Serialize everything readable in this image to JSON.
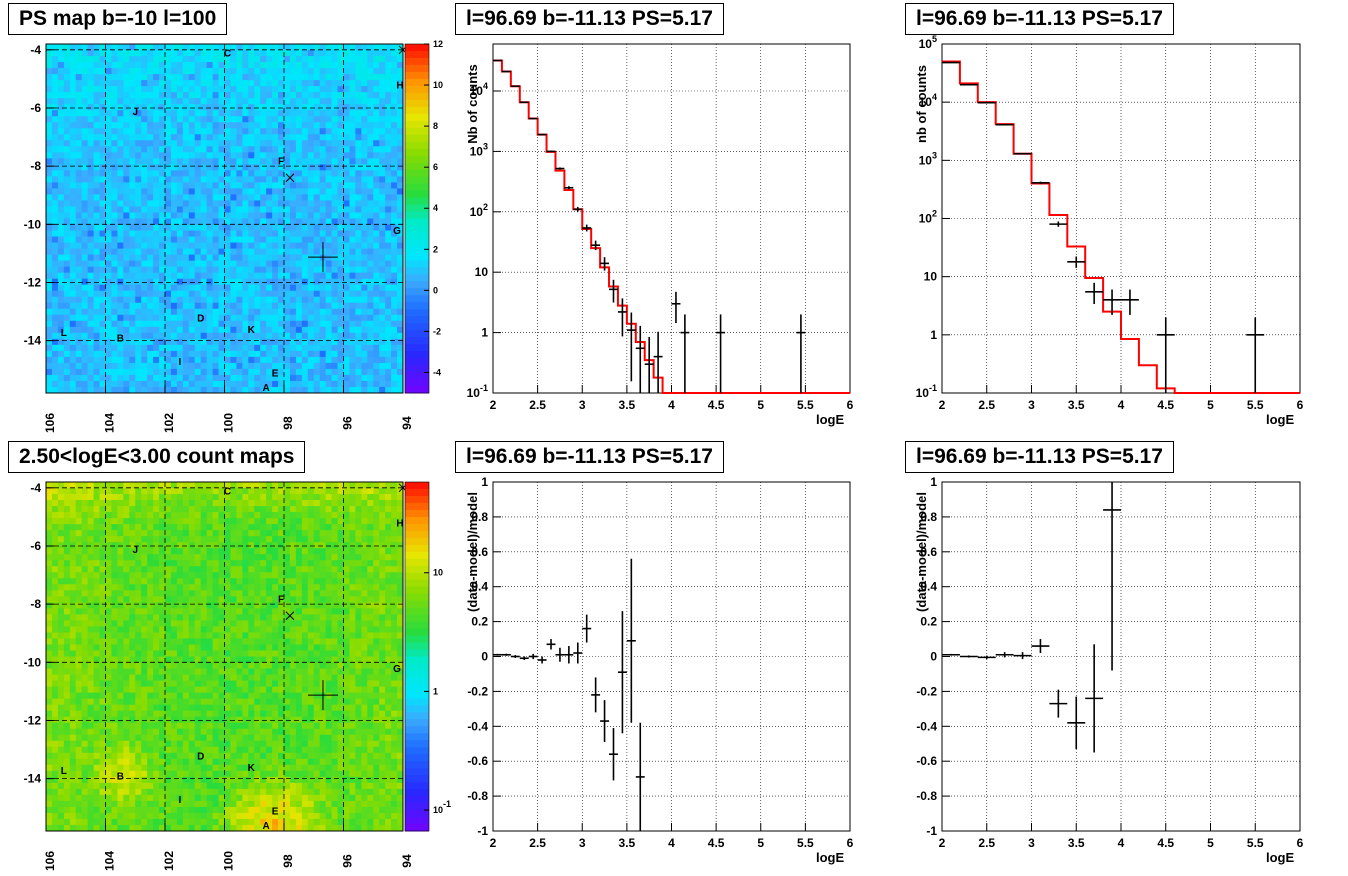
{
  "titles": {
    "ps_map": "PS map b=-10 l=100",
    "count_map": "2.50<logE<3.00 count maps",
    "spec1": "l=96.69 b=-11.13 PS=5.17",
    "spec2": "l=96.69 b=-11.13 PS=5.17",
    "res1": "l=96.69 b=-11.13 PS=5.17",
    "res2": "l=96.69 b=-11.13 PS=5.17"
  },
  "chart_data": [
    {
      "id": "ps_map",
      "type": "heatmap",
      "title": "PS map b=-10 l=100",
      "x_ticks": [
        "106",
        "104",
        "102",
        "100",
        "98",
        "96",
        "94"
      ],
      "y_ticks": [
        "-4",
        "-6",
        "-8",
        "-10",
        "-12",
        "-14"
      ],
      "xlim": [
        106,
        94
      ],
      "ylim": [
        -15.8,
        -3.8
      ],
      "colorbar_ticks": [
        "12",
        "10",
        "8",
        "6",
        "4",
        "2",
        "0",
        "-2",
        "-4"
      ],
      "colorbar_range": [
        -5,
        12
      ],
      "grid": true,
      "source_labels": [
        {
          "label": "C",
          "l": 99.9,
          "b": -4.1
        },
        {
          "label": "H",
          "l": 94.1,
          "b": -5.2
        },
        {
          "label": "J",
          "l": 103.0,
          "b": -6.1
        },
        {
          "label": "F",
          "l": 98.1,
          "b": -7.8
        },
        {
          "label": "G",
          "l": 94.2,
          "b": -10.2
        },
        {
          "label": "D",
          "l": 100.8,
          "b": -13.2
        },
        {
          "label": "K",
          "l": 99.1,
          "b": -13.6
        },
        {
          "label": "L",
          "l": 105.4,
          "b": -13.7
        },
        {
          "label": "B",
          "l": 103.5,
          "b": -13.9
        },
        {
          "label": "I",
          "l": 101.5,
          "b": -14.7
        },
        {
          "label": "E",
          "l": 98.3,
          "b": -15.1
        },
        {
          "label": "A",
          "l": 98.6,
          "b": -15.6
        }
      ],
      "x_markers": [
        {
          "l": 94.0,
          "b": -4.0
        },
        {
          "l": 97.8,
          "b": -8.4
        }
      ],
      "cross_marker": {
        "l": 96.69,
        "b": -11.13
      }
    },
    {
      "id": "count_map",
      "type": "heatmap",
      "title": "2.50<logE<3.00 count maps",
      "x_ticks": [
        "106",
        "104",
        "102",
        "100",
        "98",
        "96",
        "94"
      ],
      "y_ticks": [
        "-4",
        "-6",
        "-8",
        "-10",
        "-12",
        "-14"
      ],
      "xlim": [
        106,
        94
      ],
      "ylim": [
        -15.8,
        -3.8
      ],
      "colorbar_ticks": [
        "10",
        "1",
        "10^-1"
      ],
      "colorbar_scale": "log",
      "grid": true,
      "source_labels": [
        {
          "label": "C",
          "l": 99.9,
          "b": -4.1
        },
        {
          "label": "H",
          "l": 94.1,
          "b": -5.2
        },
        {
          "label": "J",
          "l": 103.0,
          "b": -6.1
        },
        {
          "label": "F",
          "l": 98.1,
          "b": -7.8
        },
        {
          "label": "G",
          "l": 94.2,
          "b": -10.2
        },
        {
          "label": "D",
          "l": 100.8,
          "b": -13.2
        },
        {
          "label": "K",
          "l": 99.1,
          "b": -13.6
        },
        {
          "label": "L",
          "l": 105.4,
          "b": -13.7
        },
        {
          "label": "B",
          "l": 103.5,
          "b": -13.9
        },
        {
          "label": "I",
          "l": 101.5,
          "b": -14.7
        },
        {
          "label": "E",
          "l": 98.3,
          "b": -15.1
        },
        {
          "label": "A",
          "l": 98.6,
          "b": -15.6
        }
      ],
      "x_markers": [
        {
          "l": 94.0,
          "b": -4.0
        },
        {
          "l": 97.8,
          "b": -8.4
        }
      ],
      "cross_marker": {
        "l": 96.69,
        "b": -11.13
      }
    },
    {
      "id": "spec1",
      "type": "line",
      "title": "l=96.69 b=-11.13 PS=5.17",
      "xlabel": "logE",
      "ylabel": "Nb of counts",
      "xlim": [
        2,
        6
      ],
      "ylim": [
        0.1,
        60000
      ],
      "yscale": "log",
      "x_ticks": [
        "2",
        "2.5",
        "3",
        "3.5",
        "4",
        "4.5",
        "5",
        "5.5",
        "6"
      ],
      "y_ticks": [
        "10^-1",
        "1",
        "10",
        "10^2",
        "10^3",
        "10^4"
      ],
      "grid": true,
      "model_color": "#ff0000",
      "model_edges": [
        2.0,
        2.1,
        2.2,
        2.3,
        2.4,
        2.5,
        2.6,
        2.7,
        2.8,
        2.9,
        3.0,
        3.1,
        3.2,
        3.3,
        3.4,
        3.5,
        3.6,
        3.7,
        3.8,
        3.9,
        4.0,
        4.1,
        4.2,
        4.3,
        4.4,
        4.5,
        6.0
      ],
      "model_values": [
        32000,
        21000,
        12000,
        6500,
        3500,
        1900,
        980,
        480,
        230,
        110,
        52,
        25,
        12,
        5.8,
        2.8,
        1.4,
        0.7,
        0.35,
        0.18,
        0.09,
        0.045,
        0.022,
        0.011,
        0.005,
        0.0025,
        0.0012
      ],
      "points": [
        {
          "x": 2.05,
          "y": 32000
        },
        {
          "x": 2.15,
          "y": 21000
        },
        {
          "x": 2.25,
          "y": 12000
        },
        {
          "x": 2.35,
          "y": 6500
        },
        {
          "x": 2.45,
          "y": 3500
        },
        {
          "x": 2.55,
          "y": 1900
        },
        {
          "x": 2.65,
          "y": 1000
        },
        {
          "x": 2.75,
          "y": 520
        },
        {
          "x": 2.85,
          "y": 250
        },
        {
          "x": 2.95,
          "y": 110
        },
        {
          "x": 3.05,
          "y": 54
        },
        {
          "x": 3.15,
          "y": 28
        },
        {
          "x": 3.25,
          "y": 14
        },
        {
          "x": 3.35,
          "y": 5.2
        },
        {
          "x": 3.45,
          "y": 2.2
        },
        {
          "x": 3.55,
          "y": 1.1
        },
        {
          "x": 3.65,
          "y": 0.55
        },
        {
          "x": 3.75,
          "y": 0.3
        },
        {
          "x": 3.85,
          "y": 0.4
        },
        {
          "x": 4.05,
          "y": 3
        },
        {
          "x": 4.15,
          "y": 1
        },
        {
          "x": 4.55,
          "y": 1
        },
        {
          "x": 5.45,
          "y": 1
        }
      ]
    },
    {
      "id": "spec2",
      "type": "line",
      "title": "l=96.69 b=-11.13 PS=5.17",
      "xlabel": "logE",
      "ylabel": "nb of counts",
      "xlim": [
        2,
        6
      ],
      "ylim": [
        0.1,
        100000
      ],
      "yscale": "log",
      "x_ticks": [
        "2",
        "2.5",
        "3",
        "3.5",
        "4",
        "4.5",
        "5",
        "5.5",
        "6"
      ],
      "y_ticks": [
        "10^-1",
        "1",
        "10",
        "10^2",
        "10^3",
        "10^4",
        "10^5"
      ],
      "grid": true,
      "model_color": "#ff0000",
      "model_edges": [
        2.0,
        2.2,
        2.4,
        2.6,
        2.8,
        3.0,
        3.2,
        3.4,
        3.6,
        3.8,
        4.0,
        4.2,
        4.4,
        4.6,
        6.0
      ],
      "model_values": [
        50000,
        21000,
        10000,
        4200,
        1300,
        400,
        115,
        33,
        9.5,
        2.5,
        0.85,
        0.3,
        0.12,
        0.05
      ],
      "points": [
        {
          "x": 2.1,
          "y": 48000
        },
        {
          "x": 2.3,
          "y": 20000
        },
        {
          "x": 2.5,
          "y": 9800
        },
        {
          "x": 2.7,
          "y": 4100
        },
        {
          "x": 2.9,
          "y": 1300
        },
        {
          "x": 3.1,
          "y": 410
        },
        {
          "x": 3.3,
          "y": 80
        },
        {
          "x": 3.5,
          "y": 18
        },
        {
          "x": 3.7,
          "y": 5.5
        },
        {
          "x": 3.9,
          "y": 4
        },
        {
          "x": 4.1,
          "y": 4
        },
        {
          "x": 4.5,
          "y": 1
        },
        {
          "x": 5.5,
          "y": 1
        }
      ]
    },
    {
      "id": "res1",
      "type": "scatter",
      "title": "l=96.69 b=-11.13 PS=5.17",
      "xlabel": "logE",
      "ylabel": "(data-model)/model",
      "xlim": [
        2,
        6
      ],
      "ylim": [
        -1,
        1
      ],
      "x_ticks": [
        "2",
        "2.5",
        "3",
        "3.5",
        "4",
        "4.5",
        "5",
        "5.5",
        "6"
      ],
      "y_ticks": [
        "1",
        "0.8",
        "0.6",
        "0.4",
        "0.2",
        "0",
        "-0.2",
        "-0.4",
        "-0.6",
        "-0.8",
        "-1"
      ],
      "grid": true,
      "points": [
        {
          "x": 2.05,
          "y": 0.01,
          "err": 0.005
        },
        {
          "x": 2.15,
          "y": 0.01,
          "err": 0.006
        },
        {
          "x": 2.25,
          "y": 0.0,
          "err": 0.008
        },
        {
          "x": 2.35,
          "y": -0.01,
          "err": 0.01
        },
        {
          "x": 2.45,
          "y": 0.0,
          "err": 0.015
        },
        {
          "x": 2.55,
          "y": -0.02,
          "err": 0.02
        },
        {
          "x": 2.65,
          "y": 0.07,
          "err": 0.03
        },
        {
          "x": 2.75,
          "y": 0.01,
          "err": 0.04
        },
        {
          "x": 2.85,
          "y": 0.01,
          "err": 0.05
        },
        {
          "x": 2.95,
          "y": 0.02,
          "err": 0.06
        },
        {
          "x": 3.05,
          "y": 0.16,
          "err": 0.08
        },
        {
          "x": 3.15,
          "y": -0.22,
          "err": 0.1
        },
        {
          "x": 3.25,
          "y": -0.37,
          "err": 0.12
        },
        {
          "x": 3.35,
          "y": -0.56,
          "err": 0.15
        },
        {
          "x": 3.45,
          "y": -0.09,
          "err": 0.35
        },
        {
          "x": 3.55,
          "y": 0.09,
          "err": 0.47
        },
        {
          "x": 3.65,
          "y": -0.69,
          "err": 0.31
        }
      ]
    },
    {
      "id": "res2",
      "type": "scatter",
      "title": "l=96.69 b=-11.13 PS=5.17",
      "xlabel": "logE",
      "ylabel": "(data-model)/model",
      "xlim": [
        2,
        6
      ],
      "ylim": [
        -1,
        1
      ],
      "x_ticks": [
        "2",
        "2.5",
        "3",
        "3.5",
        "4",
        "4.5",
        "5",
        "5.5",
        "6"
      ],
      "y_ticks": [
        "1",
        "0.8",
        "0.6",
        "0.4",
        "0.2",
        "0",
        "-0.2",
        "-0.4",
        "-0.6",
        "-0.8",
        "-1"
      ],
      "grid": true,
      "points": [
        {
          "x": 2.1,
          "y": 0.01,
          "err": 0.005
        },
        {
          "x": 2.3,
          "y": 0.0,
          "err": 0.006
        },
        {
          "x": 2.5,
          "y": -0.005,
          "err": 0.01
        },
        {
          "x": 2.7,
          "y": 0.01,
          "err": 0.015
        },
        {
          "x": 2.9,
          "y": 0.005,
          "err": 0.02
        },
        {
          "x": 3.1,
          "y": 0.06,
          "err": 0.04
        },
        {
          "x": 3.3,
          "y": -0.27,
          "err": 0.08
        },
        {
          "x": 3.5,
          "y": -0.38,
          "err": 0.15
        },
        {
          "x": 3.7,
          "y": -0.24,
          "err": 0.31
        },
        {
          "x": 3.9,
          "y": 0.84,
          "err": 0.92
        }
      ]
    }
  ]
}
